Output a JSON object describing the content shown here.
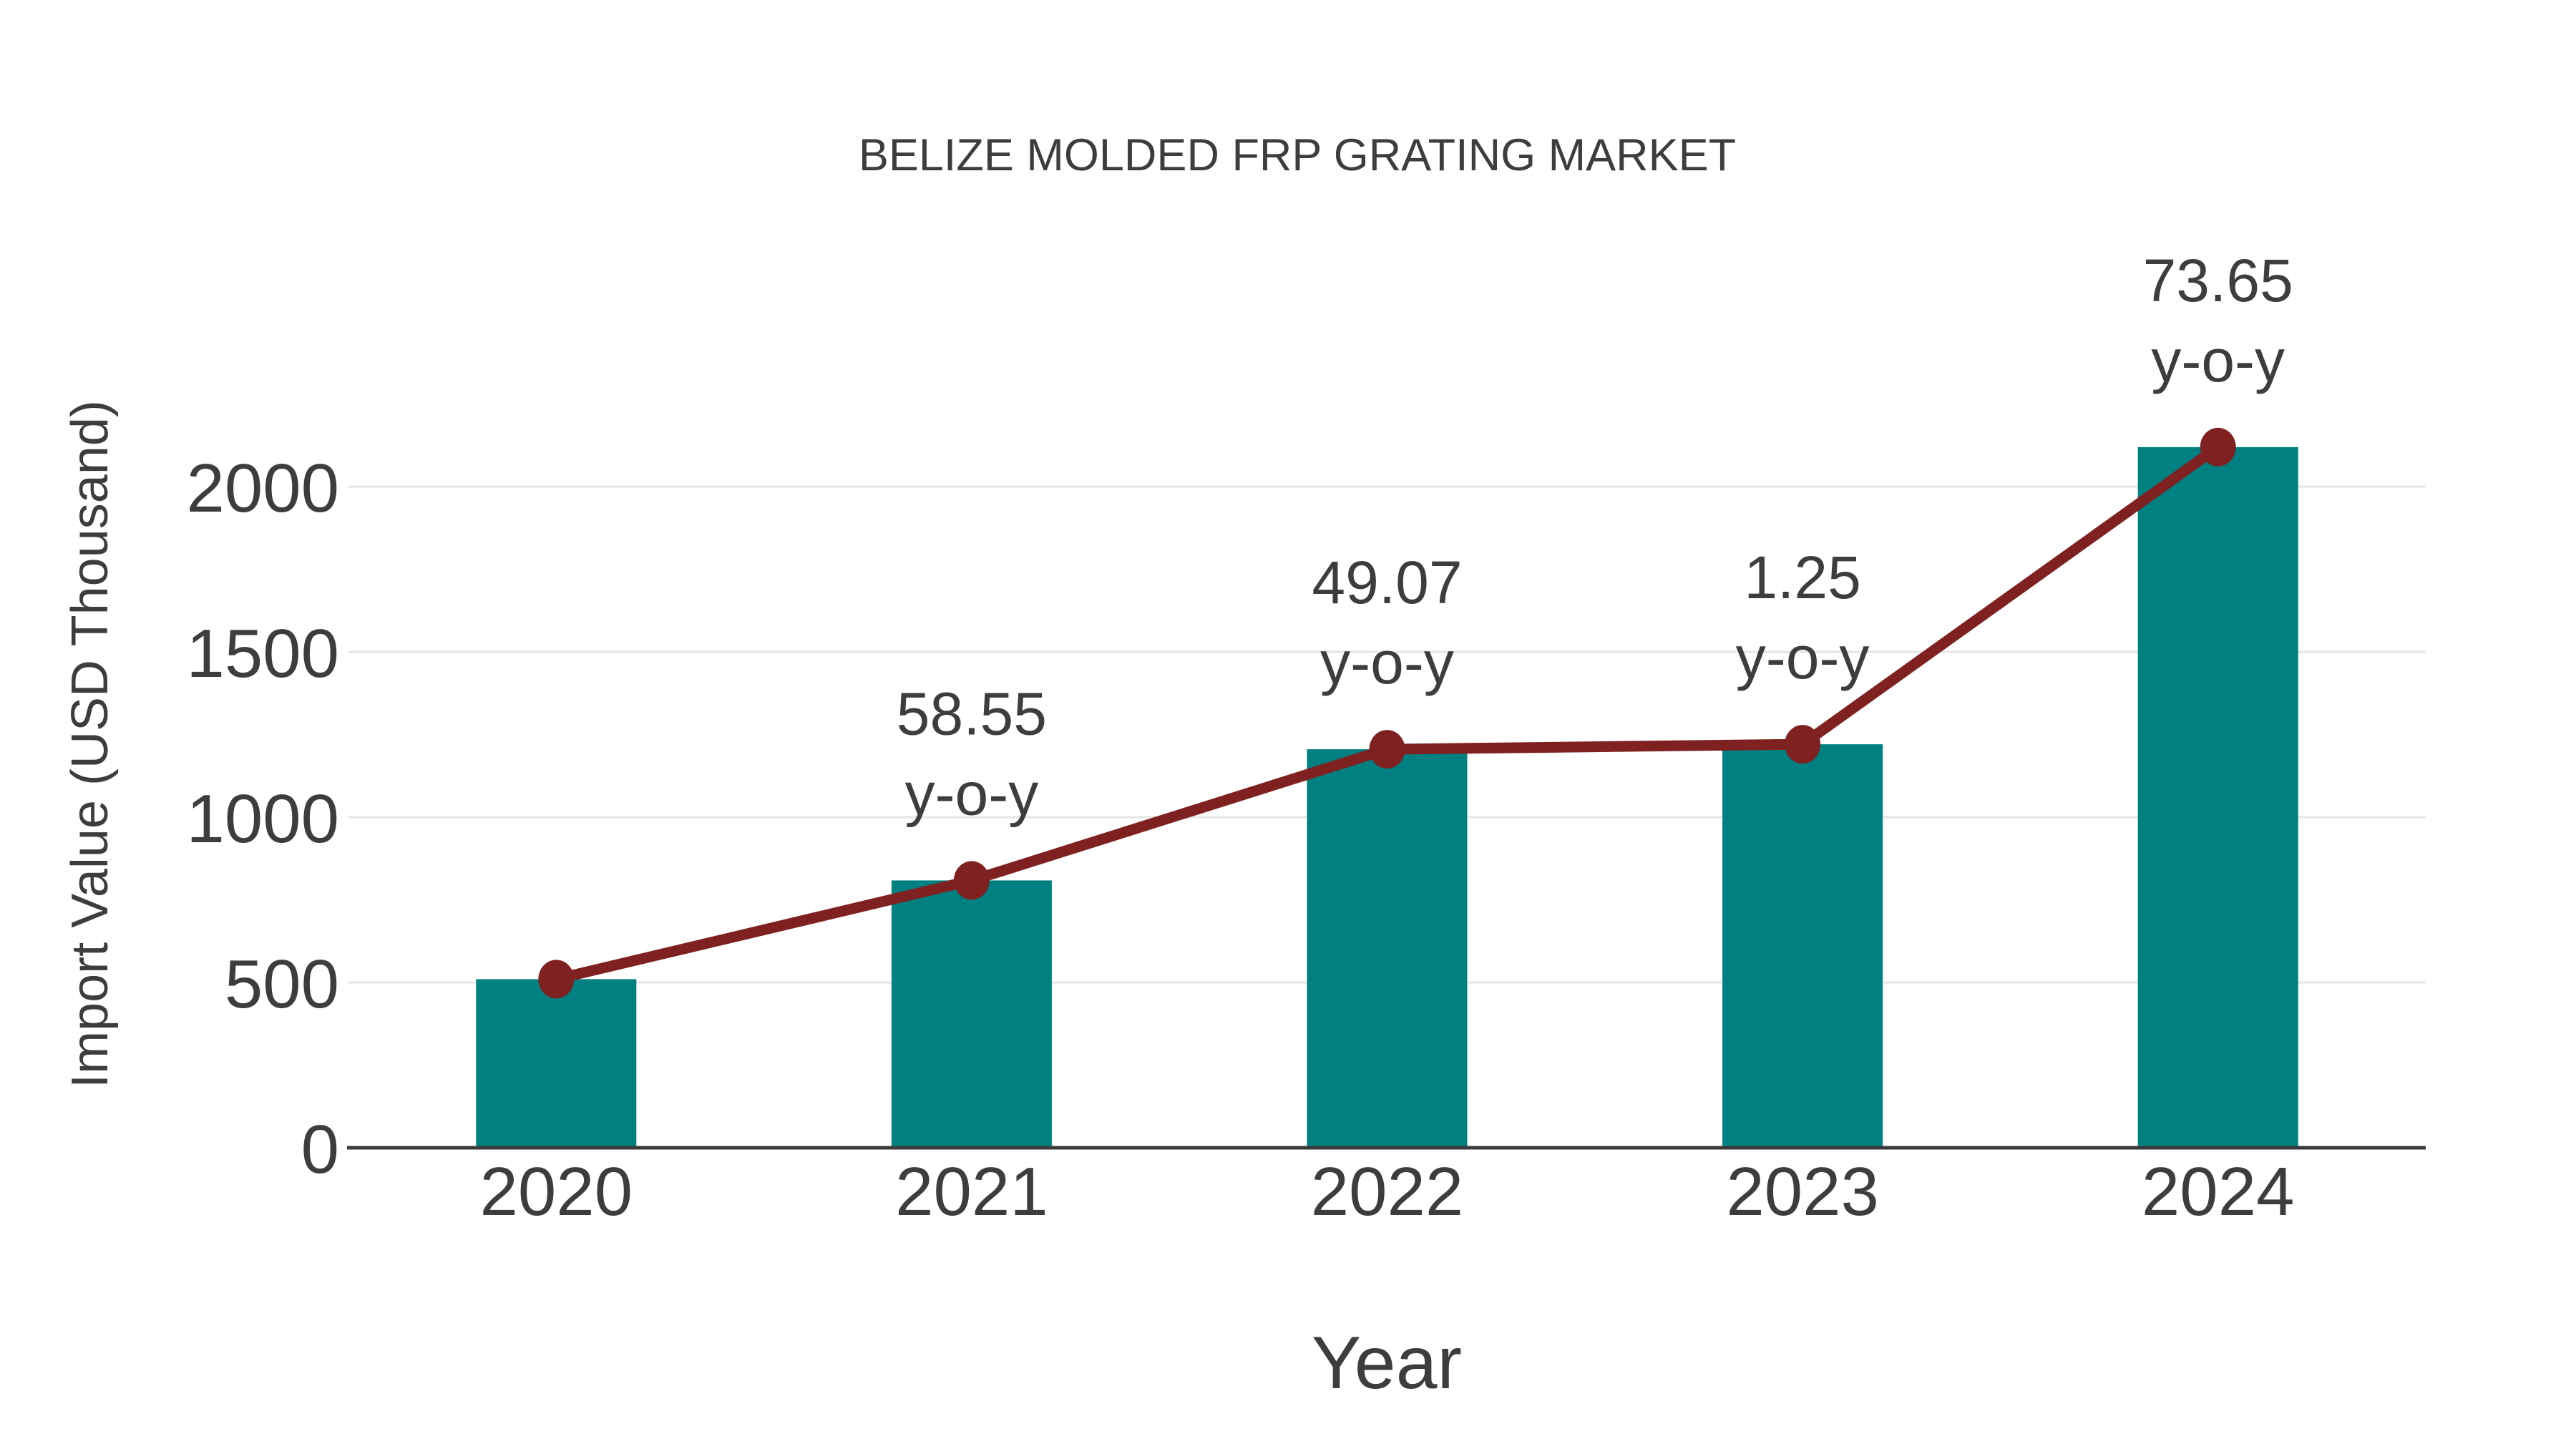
{
  "chart_data": {
    "type": "bar",
    "title": "BELIZE MOLDED FRP GRATING MARKET",
    "xlabel": "Year",
    "ylabel": "Import Value (USD Thousand)",
    "categories": [
      "2020",
      "2021",
      "2022",
      "2023",
      "2024"
    ],
    "series": [
      {
        "name": "Import Value bars",
        "type": "bar",
        "values": [
          510,
          808.6,
          1205.4,
          1220.5,
          2119.4
        ]
      },
      {
        "name": "Import Value trend line",
        "type": "line",
        "values": [
          510,
          808.6,
          1205.4,
          1220.5,
          2119.4
        ]
      }
    ],
    "yoy_percent": [
      null,
      58.55,
      49.07,
      1.25,
      73.65
    ],
    "annotations": [
      {
        "category": "2021",
        "line1": "58.55",
        "line2": "y-o-y"
      },
      {
        "category": "2022",
        "line1": "49.07",
        "line2": "y-o-y"
      },
      {
        "category": "2023",
        "line1": "1.25",
        "line2": "y-o-y"
      },
      {
        "category": "2024",
        "line1": "73.65",
        "line2": "y-o-y"
      }
    ],
    "yticks": [
      0,
      500,
      1000,
      1500,
      2000
    ],
    "ylim": [
      0,
      2300
    ],
    "grid": "horizontal",
    "legend": "none",
    "colors": {
      "bar": "#008080",
      "line": "#7f2121",
      "marker": "#7f2121",
      "grid": "#e6e6e6",
      "axis": "#3a3a3a",
      "text": "#3d3d3d"
    }
  }
}
